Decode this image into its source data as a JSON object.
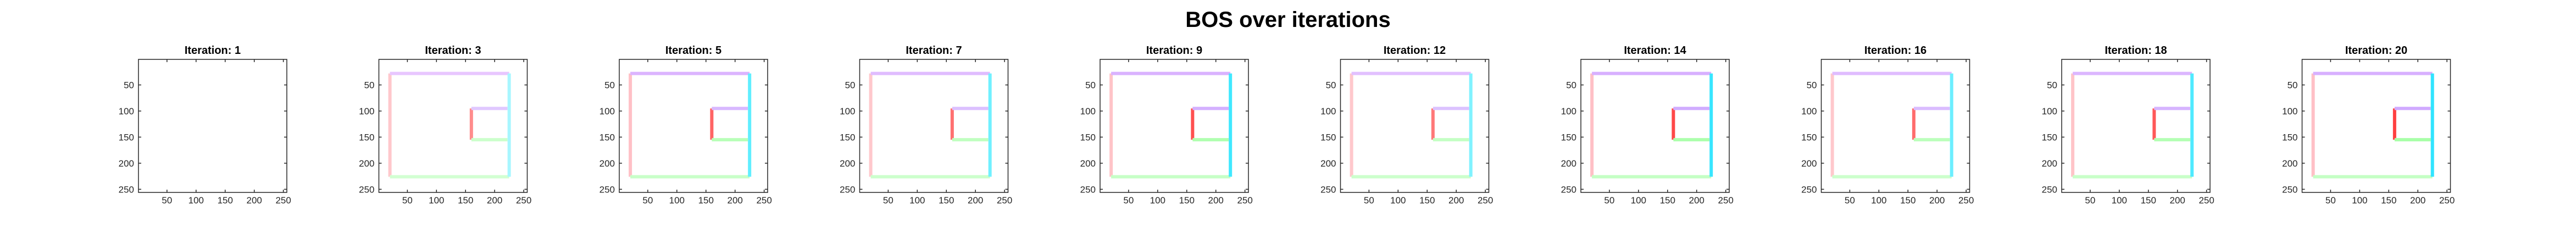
{
  "figure": {
    "title": "BOS over iterations"
  },
  "chart_data": {
    "type": "heatmap",
    "title": "BOS over iterations",
    "xlim": [
      1,
      256
    ],
    "ylim": [
      1,
      256
    ],
    "y_reversed": true,
    "xticks": [
      50,
      100,
      150,
      200,
      250
    ],
    "yticks": [
      50,
      100,
      150,
      200,
      250
    ],
    "grid": false,
    "panels": [
      {
        "title": "Iteration: 1",
        "segments": []
      },
      {
        "title": "Iteration: 3",
        "segments": [
          {
            "color": "#ffc8cc",
            "x1": 20,
            "y1": 28,
            "x2": 20,
            "y2": 226
          },
          {
            "color": "#e8c6ff",
            "x1": 20,
            "y1": 28,
            "x2": 225,
            "y2": 28
          },
          {
            "color": "#d2ffd2",
            "x1": 20,
            "y1": 226,
            "x2": 225,
            "y2": 226
          },
          {
            "color": "#a8f6ff",
            "x1": 225,
            "y1": 28,
            "x2": 225,
            "y2": 226
          },
          {
            "color": "#ff8c8c",
            "x1": 160,
            "y1": 95,
            "x2": 160,
            "y2": 155
          },
          {
            "color": "#e0c8ff",
            "x1": 160,
            "y1": 95,
            "x2": 222,
            "y2": 95
          },
          {
            "color": "#ccffcc",
            "x1": 160,
            "y1": 155,
            "x2": 222,
            "y2": 155
          }
        ]
      },
      {
        "title": "Iteration: 5",
        "segments": [
          {
            "color": "#ffc0c6",
            "x1": 20,
            "y1": 28,
            "x2": 20,
            "y2": 226
          },
          {
            "color": "#dcb4ff",
            "x1": 20,
            "y1": 28,
            "x2": 225,
            "y2": 28
          },
          {
            "color": "#c8ffc8",
            "x1": 20,
            "y1": 226,
            "x2": 225,
            "y2": 226
          },
          {
            "color": "#60eeff",
            "x1": 225,
            "y1": 28,
            "x2": 225,
            "y2": 226
          },
          {
            "color": "#ff6464",
            "x1": 160,
            "y1": 95,
            "x2": 160,
            "y2": 155
          },
          {
            "color": "#d8b8ff",
            "x1": 160,
            "y1": 95,
            "x2": 222,
            "y2": 95
          },
          {
            "color": "#b8ffb8",
            "x1": 160,
            "y1": 155,
            "x2": 222,
            "y2": 155
          }
        ]
      },
      {
        "title": "Iteration: 7",
        "segments": [
          {
            "color": "#ffc8cc",
            "x1": 20,
            "y1": 28,
            "x2": 20,
            "y2": 226
          },
          {
            "color": "#e0bcff",
            "x1": 20,
            "y1": 28,
            "x2": 225,
            "y2": 28
          },
          {
            "color": "#ccffcc",
            "x1": 20,
            "y1": 226,
            "x2": 225,
            "y2": 226
          },
          {
            "color": "#70f0ff",
            "x1": 225,
            "y1": 28,
            "x2": 225,
            "y2": 226
          },
          {
            "color": "#ff7070",
            "x1": 160,
            "y1": 95,
            "x2": 160,
            "y2": 155
          },
          {
            "color": "#dcc0ff",
            "x1": 160,
            "y1": 95,
            "x2": 222,
            "y2": 95
          },
          {
            "color": "#c0ffc0",
            "x1": 160,
            "y1": 155,
            "x2": 222,
            "y2": 155
          }
        ]
      },
      {
        "title": "Iteration: 9",
        "segments": [
          {
            "color": "#ffc4c8",
            "x1": 20,
            "y1": 28,
            "x2": 20,
            "y2": 226
          },
          {
            "color": "#dab2ff",
            "x1": 20,
            "y1": 28,
            "x2": 225,
            "y2": 28
          },
          {
            "color": "#c6ffc6",
            "x1": 20,
            "y1": 226,
            "x2": 225,
            "y2": 226
          },
          {
            "color": "#40e8ff",
            "x1": 225,
            "y1": 28,
            "x2": 225,
            "y2": 226
          },
          {
            "color": "#ff5050",
            "x1": 160,
            "y1": 95,
            "x2": 160,
            "y2": 155
          },
          {
            "color": "#d4b0ff",
            "x1": 160,
            "y1": 95,
            "x2": 222,
            "y2": 95
          },
          {
            "color": "#b0ffb0",
            "x1": 160,
            "y1": 155,
            "x2": 222,
            "y2": 155
          }
        ]
      },
      {
        "title": "Iteration: 12",
        "segments": [
          {
            "color": "#ffc8cc",
            "x1": 20,
            "y1": 28,
            "x2": 20,
            "y2": 226
          },
          {
            "color": "#e2c0ff",
            "x1": 20,
            "y1": 28,
            "x2": 225,
            "y2": 28
          },
          {
            "color": "#ccffcc",
            "x1": 20,
            "y1": 226,
            "x2": 225,
            "y2": 226
          },
          {
            "color": "#80f2ff",
            "x1": 225,
            "y1": 28,
            "x2": 225,
            "y2": 226
          },
          {
            "color": "#ff7878",
            "x1": 160,
            "y1": 95,
            "x2": 160,
            "y2": 155
          },
          {
            "color": "#dcc2ff",
            "x1": 160,
            "y1": 95,
            "x2": 222,
            "y2": 95
          },
          {
            "color": "#c4ffc4",
            "x1": 160,
            "y1": 155,
            "x2": 222,
            "y2": 155
          }
        ]
      },
      {
        "title": "Iteration: 14",
        "segments": [
          {
            "color": "#ffc0c6",
            "x1": 20,
            "y1": 28,
            "x2": 20,
            "y2": 226
          },
          {
            "color": "#d8b0ff",
            "x1": 20,
            "y1": 28,
            "x2": 225,
            "y2": 28
          },
          {
            "color": "#c4ffc4",
            "x1": 20,
            "y1": 226,
            "x2": 225,
            "y2": 226
          },
          {
            "color": "#38e6ff",
            "x1": 225,
            "y1": 28,
            "x2": 225,
            "y2": 226
          },
          {
            "color": "#ff4848",
            "x1": 160,
            "y1": 95,
            "x2": 160,
            "y2": 155
          },
          {
            "color": "#d0acff",
            "x1": 160,
            "y1": 95,
            "x2": 222,
            "y2": 95
          },
          {
            "color": "#acffac",
            "x1": 160,
            "y1": 155,
            "x2": 222,
            "y2": 155
          }
        ]
      },
      {
        "title": "Iteration: 16",
        "segments": [
          {
            "color": "#ffc8cc",
            "x1": 20,
            "y1": 28,
            "x2": 20,
            "y2": 226
          },
          {
            "color": "#e0bcff",
            "x1": 20,
            "y1": 28,
            "x2": 225,
            "y2": 28
          },
          {
            "color": "#ccffcc",
            "x1": 20,
            "y1": 226,
            "x2": 225,
            "y2": 226
          },
          {
            "color": "#6ceeff",
            "x1": 225,
            "y1": 28,
            "x2": 225,
            "y2": 226
          },
          {
            "color": "#ff6c6c",
            "x1": 160,
            "y1": 95,
            "x2": 160,
            "y2": 155
          },
          {
            "color": "#dabcff",
            "x1": 160,
            "y1": 95,
            "x2": 222,
            "y2": 95
          },
          {
            "color": "#bcffbc",
            "x1": 160,
            "y1": 155,
            "x2": 222,
            "y2": 155
          }
        ]
      },
      {
        "title": "Iteration: 18",
        "segments": [
          {
            "color": "#ffc4c8",
            "x1": 20,
            "y1": 28,
            "x2": 20,
            "y2": 226
          },
          {
            "color": "#dcb6ff",
            "x1": 20,
            "y1": 28,
            "x2": 225,
            "y2": 28
          },
          {
            "color": "#c8ffc8",
            "x1": 20,
            "y1": 226,
            "x2": 225,
            "y2": 226
          },
          {
            "color": "#50eaff",
            "x1": 225,
            "y1": 28,
            "x2": 225,
            "y2": 226
          },
          {
            "color": "#ff5858",
            "x1": 160,
            "y1": 95,
            "x2": 160,
            "y2": 155
          },
          {
            "color": "#d6b4ff",
            "x1": 160,
            "y1": 95,
            "x2": 222,
            "y2": 95
          },
          {
            "color": "#b4ffb4",
            "x1": 160,
            "y1": 155,
            "x2": 222,
            "y2": 155
          }
        ]
      },
      {
        "title": "Iteration: 20",
        "segments": [
          {
            "color": "#ffc0c6",
            "x1": 20,
            "y1": 28,
            "x2": 20,
            "y2": 226
          },
          {
            "color": "#d8b0ff",
            "x1": 20,
            "y1": 28,
            "x2": 225,
            "y2": 28
          },
          {
            "color": "#c4ffc4",
            "x1": 20,
            "y1": 226,
            "x2": 225,
            "y2": 226
          },
          {
            "color": "#30e4ff",
            "x1": 225,
            "y1": 28,
            "x2": 225,
            "y2": 226
          },
          {
            "color": "#ff4040",
            "x1": 160,
            "y1": 95,
            "x2": 160,
            "y2": 155
          },
          {
            "color": "#d0aaff",
            "x1": 160,
            "y1": 95,
            "x2": 222,
            "y2": 95
          },
          {
            "color": "#a8ffa8",
            "x1": 160,
            "y1": 155,
            "x2": 222,
            "y2": 155
          }
        ]
      }
    ]
  }
}
